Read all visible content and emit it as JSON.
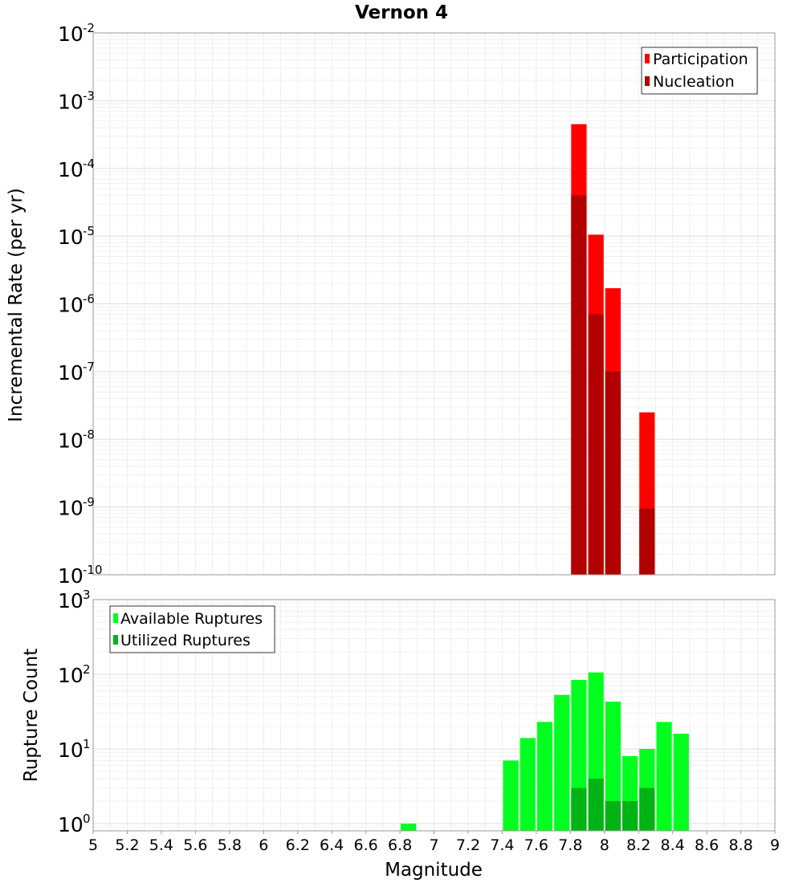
{
  "chart_data": [
    {
      "type": "bar",
      "panel": "top",
      "title": "Vernon 4",
      "xlabel": "",
      "ylabel": "Incremental Rate (per yr)",
      "yscale": "log",
      "ylim": [
        1e-10,
        0.01
      ],
      "y_tick_exponents": [
        "-10",
        "-9",
        "-8",
        "-7",
        "-6",
        "-5",
        "-4",
        "-3",
        "-2"
      ],
      "xlim": [
        5,
        9
      ],
      "bin_width": 0.1,
      "legend": {
        "position": "top-right",
        "entries": [
          "Participation",
          "Nucleation"
        ]
      },
      "colors": {
        "Participation": "#ff0000",
        "Nucleation": "#b20000"
      },
      "series": [
        {
          "name": "Participation",
          "x": [
            7.85,
            7.95,
            8.05,
            8.25
          ],
          "values": [
            0.00045,
            1.05e-05,
            1.7e-06,
            2.5e-08
          ]
        },
        {
          "name": "Nucleation",
          "x": [
            7.85,
            7.95,
            8.05,
            8.25
          ],
          "values": [
            4e-05,
            7e-07,
            1e-07,
            9.5e-10
          ]
        }
      ]
    },
    {
      "type": "bar",
      "panel": "bottom",
      "title": "",
      "xlabel": "Magnitude",
      "ylabel": "Rupture Count",
      "yscale": "log",
      "ylim": [
        0.8,
        1000
      ],
      "y_tick_exponents": [
        "0",
        "1",
        "2",
        "3"
      ],
      "xlim": [
        5,
        9
      ],
      "x_ticks": [
        "5",
        "5.2",
        "5.4",
        "5.6",
        "5.8",
        "6",
        "6.2",
        "6.4",
        "6.6",
        "6.8",
        "7",
        "7.2",
        "7.4",
        "7.6",
        "7.8",
        "8",
        "8.2",
        "8.4",
        "8.6",
        "8.8",
        "9"
      ],
      "bin_width": 0.1,
      "legend": {
        "position": "top-left",
        "entries": [
          "Available Ruptures",
          "Utilized Ruptures"
        ]
      },
      "colors": {
        "Available Ruptures": "#00ff1e",
        "Utilized Ruptures": "#00b315"
      },
      "series": [
        {
          "name": "Available Ruptures",
          "x": [
            6.85,
            7.45,
            7.55,
            7.65,
            7.75,
            7.85,
            7.95,
            8.05,
            8.15,
            8.25,
            8.35,
            8.45
          ],
          "values": [
            1,
            7,
            14,
            23,
            53,
            84,
            106,
            43,
            8,
            10,
            23,
            16
          ]
        },
        {
          "name": "Utilized Ruptures",
          "x": [
            7.85,
            7.95,
            8.05,
            8.15,
            8.25
          ],
          "values": [
            3,
            4,
            2,
            2,
            3
          ]
        }
      ]
    }
  ]
}
